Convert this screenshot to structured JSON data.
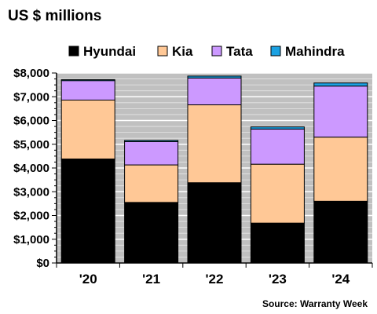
{
  "chart_data": {
    "type": "bar",
    "stacked": true,
    "title": "US $ millions",
    "categories": [
      "'20",
      "'21",
      "'22",
      "'23",
      "'24"
    ],
    "series": [
      {
        "name": "Hyundai",
        "color": "#000000",
        "values": [
          4380,
          2550,
          3380,
          1680,
          2600
        ]
      },
      {
        "name": "Kia",
        "color": "#ffc896",
        "values": [
          2480,
          1580,
          3280,
          2480,
          2700
        ]
      },
      {
        "name": "Tata",
        "color": "#cc99ff",
        "values": [
          820,
          980,
          1130,
          1480,
          2150
        ]
      },
      {
        "name": "Mahindra",
        "color": "#1ba1e2",
        "values": [
          40,
          50,
          80,
          90,
          130
        ]
      }
    ],
    "ylim": [
      0,
      8000
    ],
    "yticks": [
      0,
      1000,
      2000,
      3000,
      4000,
      5000,
      6000,
      7000,
      8000
    ],
    "ytick_labels": [
      "$0",
      "$1,000",
      "$2,000",
      "$3,000",
      "$4,000",
      "$5,000",
      "$6,000",
      "$7,000",
      "$8,000"
    ],
    "grid": true,
    "plot_background": "#c0c0c0",
    "legend": "top",
    "source": "Source: Warranty Week"
  }
}
